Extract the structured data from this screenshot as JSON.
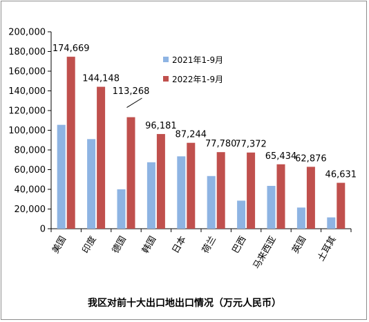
{
  "chart_data": {
    "type": "bar",
    "title": "我区对前十大出口地出口情况（万元人民币）",
    "categories": [
      "美国",
      "印度",
      "德国",
      "韩国",
      "日本",
      "荷兰",
      "巴西",
      "马来西亚",
      "英国",
      "土耳其"
    ],
    "series": [
      {
        "name": "2021年1-9月",
        "color": "#8eb4e3",
        "values": [
          105500,
          91000,
          40000,
          67500,
          73500,
          53500,
          28500,
          43500,
          21500,
          11500
        ]
      },
      {
        "name": "2022年1-9月",
        "color": "#c0504d",
        "values": [
          174669,
          144148,
          113268,
          96181,
          87244,
          77780,
          77372,
          65434,
          62876,
          46631
        ]
      }
    ],
    "data_labels": [
      "174,669",
      "144,148",
      "113,268",
      "96,181",
      "87,244",
      "77,780",
      "77,372",
      "65,434",
      "62,876",
      "46,631"
    ],
    "yticks": [
      "0",
      "20,000",
      "40,000",
      "60,000",
      "80,000",
      "100,000",
      "120,000",
      "140,000",
      "160,000",
      "180,000",
      "200,000"
    ],
    "ylim": [
      0,
      200000
    ],
    "grid": false,
    "legend_position": "top-right"
  }
}
